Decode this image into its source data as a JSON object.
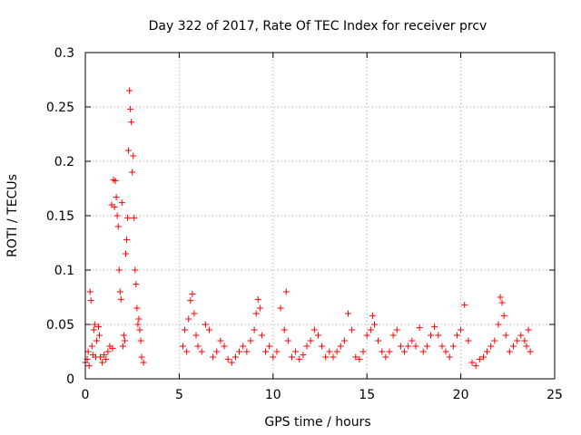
{
  "chart_data": {
    "type": "scatter",
    "title": "Day 322 of 2017, Rate Of TEC Index for receiver prcv",
    "xlabel": "GPS time / hours",
    "ylabel": "ROTI / TECUs",
    "xlim": [
      0,
      25
    ],
    "ylim": [
      0,
      0.3
    ],
    "grid": true,
    "xticks": [
      0,
      5,
      10,
      15,
      20,
      25
    ],
    "xtick_labels": [
      "0",
      "5",
      "10",
      "15",
      "20",
      "25"
    ],
    "yticks": [
      0,
      0.05,
      0.1,
      0.15,
      0.2,
      0.25,
      0.3
    ],
    "ytick_labels": [
      "0",
      "0.05",
      "0.1",
      "0.15",
      "0.2",
      "0.25",
      "0.3"
    ],
    "marker_color": "#ff0000",
    "series": [
      {
        "name": "ROTI",
        "points": [
          [
            0.0,
            0.015
          ],
          [
            0.1,
            0.018
          ],
          [
            0.15,
            0.025
          ],
          [
            0.2,
            0.012
          ],
          [
            0.25,
            0.08
          ],
          [
            0.3,
            0.072
          ],
          [
            0.35,
            0.03
          ],
          [
            0.4,
            0.022
          ],
          [
            0.45,
            0.045
          ],
          [
            0.5,
            0.05
          ],
          [
            0.55,
            0.02
          ],
          [
            0.6,
            0.035
          ],
          [
            0.7,
            0.048
          ],
          [
            0.75,
            0.04
          ],
          [
            0.8,
            0.02
          ],
          [
            0.9,
            0.015
          ],
          [
            1.0,
            0.022
          ],
          [
            1.1,
            0.018
          ],
          [
            1.2,
            0.025
          ],
          [
            1.3,
            0.03
          ],
          [
            1.4,
            0.16
          ],
          [
            1.45,
            0.028
          ],
          [
            1.5,
            0.183
          ],
          [
            1.55,
            0.158
          ],
          [
            1.6,
            0.182
          ],
          [
            1.65,
            0.167
          ],
          [
            1.7,
            0.15
          ],
          [
            1.75,
            0.14
          ],
          [
            1.8,
            0.1
          ],
          [
            1.85,
            0.08
          ],
          [
            1.9,
            0.073
          ],
          [
            1.95,
            0.162
          ],
          [
            2.0,
            0.03
          ],
          [
            2.05,
            0.04
          ],
          [
            2.1,
            0.035
          ],
          [
            2.15,
            0.115
          ],
          [
            2.2,
            0.128
          ],
          [
            2.25,
            0.148
          ],
          [
            2.3,
            0.21
          ],
          [
            2.35,
            0.265
          ],
          [
            2.4,
            0.248
          ],
          [
            2.45,
            0.236
          ],
          [
            2.5,
            0.19
          ],
          [
            2.55,
            0.205
          ],
          [
            2.6,
            0.148
          ],
          [
            2.65,
            0.1
          ],
          [
            2.7,
            0.087
          ],
          [
            2.75,
            0.065
          ],
          [
            2.8,
            0.05
          ],
          [
            2.85,
            0.055
          ],
          [
            2.9,
            0.045
          ],
          [
            2.95,
            0.035
          ],
          [
            3.0,
            0.02
          ],
          [
            3.1,
            0.015
          ],
          [
            5.2,
            0.03
          ],
          [
            5.3,
            0.045
          ],
          [
            5.4,
            0.025
          ],
          [
            5.5,
            0.055
          ],
          [
            5.6,
            0.072
          ],
          [
            5.7,
            0.078
          ],
          [
            5.8,
            0.06
          ],
          [
            5.9,
            0.04
          ],
          [
            6.0,
            0.03
          ],
          [
            6.2,
            0.025
          ],
          [
            6.4,
            0.05
          ],
          [
            6.6,
            0.045
          ],
          [
            6.8,
            0.02
          ],
          [
            7.0,
            0.025
          ],
          [
            7.2,
            0.035
          ],
          [
            7.4,
            0.03
          ],
          [
            7.6,
            0.018
          ],
          [
            7.8,
            0.015
          ],
          [
            8.0,
            0.02
          ],
          [
            8.2,
            0.025
          ],
          [
            8.4,
            0.03
          ],
          [
            8.6,
            0.025
          ],
          [
            8.8,
            0.035
          ],
          [
            9.0,
            0.045
          ],
          [
            9.1,
            0.06
          ],
          [
            9.2,
            0.073
          ],
          [
            9.3,
            0.065
          ],
          [
            9.4,
            0.04
          ],
          [
            9.6,
            0.025
          ],
          [
            9.8,
            0.03
          ],
          [
            10.0,
            0.02
          ],
          [
            10.2,
            0.025
          ],
          [
            10.4,
            0.065
          ],
          [
            10.6,
            0.045
          ],
          [
            10.7,
            0.08
          ],
          [
            10.8,
            0.035
          ],
          [
            11.0,
            0.02
          ],
          [
            11.2,
            0.025
          ],
          [
            11.4,
            0.018
          ],
          [
            11.6,
            0.022
          ],
          [
            11.8,
            0.03
          ],
          [
            12.0,
            0.035
          ],
          [
            12.2,
            0.045
          ],
          [
            12.4,
            0.04
          ],
          [
            12.6,
            0.03
          ],
          [
            12.8,
            0.02
          ],
          [
            13.0,
            0.025
          ],
          [
            13.2,
            0.02
          ],
          [
            13.4,
            0.025
          ],
          [
            13.6,
            0.03
          ],
          [
            13.8,
            0.035
          ],
          [
            14.0,
            0.06
          ],
          [
            14.2,
            0.045
          ],
          [
            14.4,
            0.02
          ],
          [
            14.6,
            0.018
          ],
          [
            14.8,
            0.025
          ],
          [
            15.0,
            0.04
          ],
          [
            15.2,
            0.045
          ],
          [
            15.3,
            0.058
          ],
          [
            15.4,
            0.05
          ],
          [
            15.6,
            0.035
          ],
          [
            15.8,
            0.025
          ],
          [
            16.0,
            0.02
          ],
          [
            16.2,
            0.025
          ],
          [
            16.4,
            0.04
          ],
          [
            16.6,
            0.045
          ],
          [
            16.8,
            0.03
          ],
          [
            17.0,
            0.025
          ],
          [
            17.2,
            0.03
          ],
          [
            17.4,
            0.035
          ],
          [
            17.6,
            0.03
          ],
          [
            17.8,
            0.047
          ],
          [
            18.0,
            0.025
          ],
          [
            18.2,
            0.03
          ],
          [
            18.4,
            0.04
          ],
          [
            18.6,
            0.048
          ],
          [
            18.8,
            0.04
          ],
          [
            19.0,
            0.03
          ],
          [
            19.2,
            0.025
          ],
          [
            19.4,
            0.02
          ],
          [
            19.6,
            0.03
          ],
          [
            19.8,
            0.04
          ],
          [
            20.0,
            0.045
          ],
          [
            20.2,
            0.068
          ],
          [
            20.4,
            0.035
          ],
          [
            20.6,
            0.015
          ],
          [
            20.8,
            0.012
          ],
          [
            21.0,
            0.018
          ],
          [
            21.2,
            0.02
          ],
          [
            21.4,
            0.025
          ],
          [
            21.6,
            0.03
          ],
          [
            21.8,
            0.035
          ],
          [
            22.0,
            0.05
          ],
          [
            22.1,
            0.075
          ],
          [
            22.2,
            0.07
          ],
          [
            22.3,
            0.058
          ],
          [
            22.4,
            0.04
          ],
          [
            22.6,
            0.025
          ],
          [
            22.8,
            0.03
          ],
          [
            23.0,
            0.035
          ],
          [
            23.2,
            0.04
          ],
          [
            23.4,
            0.035
          ],
          [
            23.5,
            0.03
          ],
          [
            23.6,
            0.045
          ],
          [
            23.7,
            0.025
          ]
        ]
      }
    ]
  }
}
